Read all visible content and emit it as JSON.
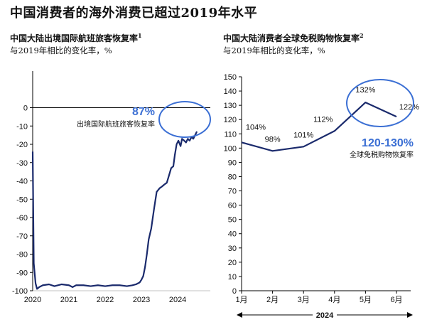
{
  "title": "中国消费者的海外消费已超过2019年水平",
  "colors": {
    "line": "#1a2a6c",
    "accent": "#3b6fd4",
    "axis": "#000000"
  },
  "chart_data": [
    {
      "type": "line",
      "title": "中国大陆出境国际航班旅客恢复率",
      "title_sup": "1",
      "subtitle": "与2019年相比的变化率，%",
      "ylim": [
        -100,
        20
      ],
      "yticks": [
        0,
        -10,
        -20,
        -30,
        -40,
        -50,
        -60,
        -70,
        -80,
        -90,
        -100
      ],
      "xlim": [
        2020,
        2024.9
      ],
      "xticks": [
        {
          "value": 2020,
          "label": "2020"
        },
        {
          "value": 2021,
          "label": "2021"
        },
        {
          "value": 2022,
          "label": "2022"
        },
        {
          "value": 2023,
          "label": "2023"
        },
        {
          "value": 2024,
          "label": "2024"
        }
      ],
      "x": [
        2020.0,
        2020.03,
        2020.08,
        2020.12,
        2020.18,
        2020.28,
        2020.45,
        2020.6,
        2020.8,
        2021.0,
        2021.1,
        2021.2,
        2021.4,
        2021.6,
        2021.8,
        2022.0,
        2022.2,
        2022.4,
        2022.6,
        2022.75,
        2022.85,
        2022.95,
        2023.0,
        2023.05,
        2023.1,
        2023.15,
        2023.2,
        2023.27,
        2023.35,
        2023.42,
        2023.5,
        2023.57,
        2023.63,
        2023.7,
        2023.76,
        2023.82,
        2023.88,
        2023.92,
        2023.97,
        2024.02,
        2024.08,
        2024.12,
        2024.18,
        2024.23,
        2024.28,
        2024.33,
        2024.38,
        2024.43,
        2024.48,
        2024.53
      ],
      "values": [
        -24,
        -85,
        -96,
        -99,
        -98,
        -97,
        -96.5,
        -97.5,
        -96.5,
        -97,
        -98,
        -97,
        -97,
        -97.5,
        -97,
        -97.5,
        -97,
        -97,
        -97.5,
        -97,
        -96.5,
        -95.5,
        -94,
        -92,
        -87,
        -80,
        -72,
        -66,
        -55,
        -46,
        -44,
        -43,
        -42,
        -41,
        -37,
        -33,
        -32,
        -26,
        -20,
        -18,
        -21,
        -17,
        -18,
        -19,
        -17,
        -18,
        -16,
        -17,
        -15,
        -13
      ],
      "annotation": {
        "value": "87%",
        "label": "出境国际航班旅客恢复率"
      }
    },
    {
      "type": "line",
      "title": "中国大陆消费者全球免税购物恢复率",
      "title_sup": "2",
      "subtitle": "与2019年相比的变化率，%",
      "ylim": [
        0,
        150
      ],
      "yticks": [
        150,
        140,
        130,
        120,
        110,
        100,
        90,
        80,
        70,
        60,
        50,
        40,
        30,
        20,
        10,
        0
      ],
      "categories": [
        "1月",
        "2月",
        "3月",
        "4月",
        "5月",
        "6月"
      ],
      "values": [
        104,
        98,
        101,
        112,
        132,
        122
      ],
      "data_labels": [
        "104%",
        "98%",
        "101%",
        "112%",
        "132%",
        "122%"
      ],
      "xlabel": "2024",
      "annotation": {
        "value": "120-130%",
        "label": "全球免税购物恢复率"
      }
    }
  ]
}
